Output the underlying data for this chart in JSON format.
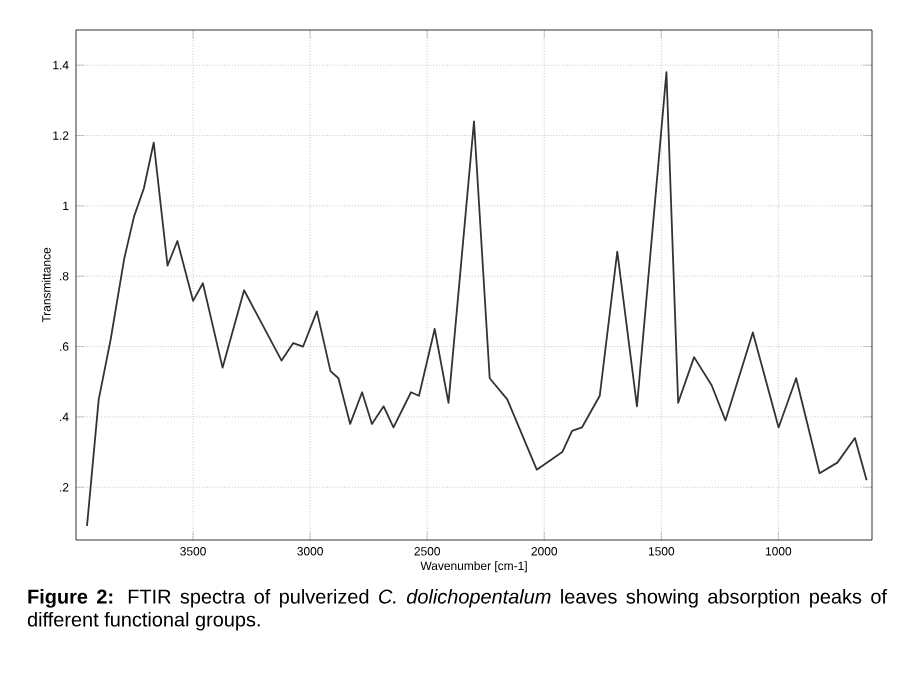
{
  "chart_data": {
    "type": "line",
    "xlabel": "Wavenumber [cm-1]",
    "ylabel": "Transmittance",
    "annotations": [
      "**Figure 2:** FTIR spectra of pulverized *C. dolichopentalum* leaves showing absorption peaks of different functional groups."
    ],
    "x": [
      3953,
      3903,
      3852,
      3794,
      3752,
      3710,
      3668,
      3609,
      3567,
      3500,
      3458,
      3374,
      3282,
      3122,
      3072,
      3030,
      2971,
      2913,
      2879,
      2829,
      2778,
      2736,
      2686,
      2644,
      2569,
      2535,
      2468,
      2409,
      2300,
      2233,
      2158,
      2032,
      1923,
      1881,
      1839,
      1763,
      1688,
      1604,
      1478,
      1428,
      1360,
      1285,
      1226,
      1109,
      999,
      924,
      824,
      748,
      673,
      623
    ],
    "series": [
      {
        "color": "#333333",
        "values": [
          0.09,
          0.45,
          0.62,
          0.85,
          0.97,
          1.05,
          1.18,
          0.83,
          0.9,
          0.73,
          0.78,
          0.54,
          0.76,
          0.56,
          0.61,
          0.6,
          0.7,
          0.53,
          0.51,
          0.38,
          0.47,
          0.38,
          0.43,
          0.37,
          0.47,
          0.46,
          0.65,
          0.44,
          1.24,
          0.51,
          0.45,
          0.25,
          0.3,
          0.36,
          0.37,
          0.46,
          0.87,
          0.43,
          1.38,
          0.44,
          0.57,
          0.49,
          0.39,
          0.64,
          0.37,
          0.51,
          0.24,
          0.27,
          0.34,
          0.22
        ]
      }
    ],
    "xlim": [
      4000,
      600
    ],
    "xticks": [
      3500,
      3000,
      2500,
      2000,
      1500,
      1000
    ],
    "ylim": [
      0.05,
      1.5
    ],
    "yticks": [
      {
        "value": 0.2,
        "label": ".2"
      },
      {
        "value": 0.4,
        "label": ".4"
      },
      {
        "value": 0.6,
        "label": ".6"
      },
      {
        "value": 0.8,
        "label": ".8"
      },
      {
        "value": 1,
        "label": "1"
      },
      {
        "value": 1.2,
        "label": "1.2"
      },
      {
        "value": 1.4,
        "label": "1.4"
      }
    ],
    "grid": true,
    "marker": "none",
    "line_style": "solid"
  }
}
